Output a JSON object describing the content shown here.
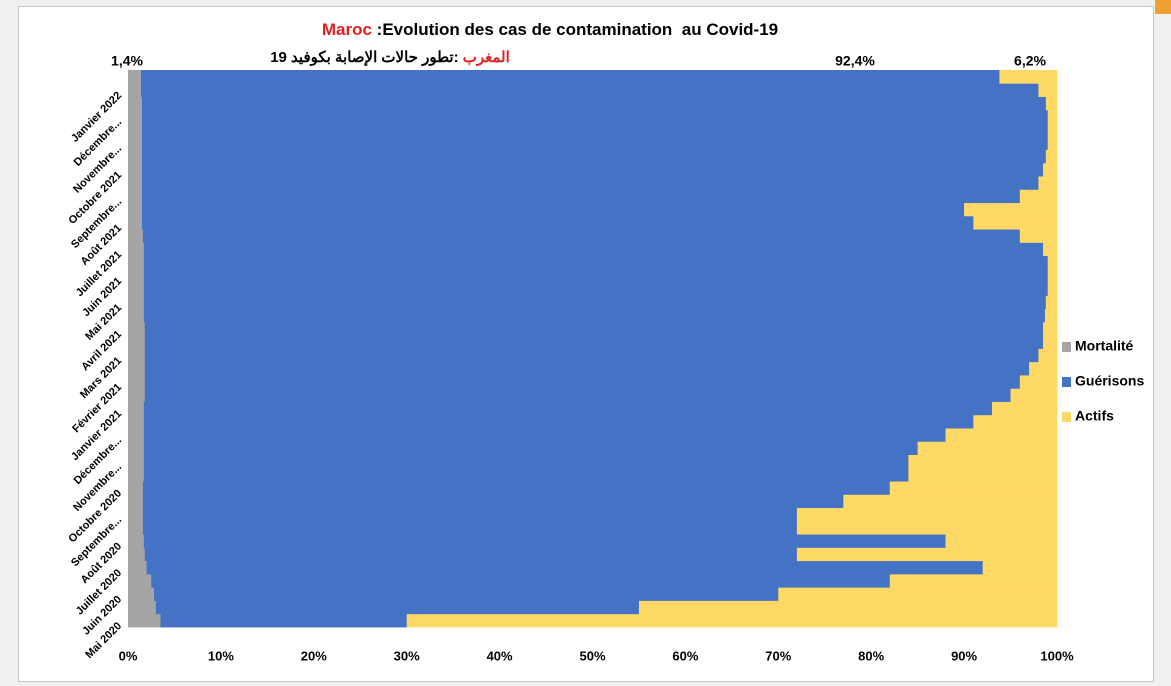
{
  "chart_data": {
    "type": "bar",
    "orientation": "horizontal",
    "stacked": true,
    "title": {
      "highlight": "Maroc",
      "text": " :Evolution des cas de contamination  au Covid-19"
    },
    "subtitle": {
      "highlight": "المغرب",
      "text": " :تطور حالات الإصابة بكوفيد 19"
    },
    "annotations": [
      "1,4%",
      "92,4%",
      "6,2%"
    ],
    "categories": [
      "Mai 2020",
      null,
      "Juin 2020",
      null,
      "Juillet 2020",
      null,
      "Août 2020",
      null,
      "Septembre...",
      null,
      "Octobre 2020",
      null,
      "Novembre...",
      null,
      "Décembre...",
      null,
      "Janvier 2021",
      null,
      "Février 2021",
      null,
      "Mars 2021",
      null,
      "Avril 2021",
      null,
      "Mai 2021",
      null,
      "Juin 2021",
      null,
      "Juillet 2021",
      null,
      "Août 2021",
      null,
      "Septembre...",
      null,
      "Octobre 2021",
      null,
      "Novembre...",
      null,
      "Décembre...",
      null,
      "Janvier 2022",
      null
    ],
    "series": [
      {
        "name": "Mortalité",
        "color": "#a5a5a5",
        "values": [
          3.5,
          3,
          2.8,
          2.5,
          2,
          1.8,
          1.7,
          1.6,
          1.6,
          1.6,
          1.6,
          1.7,
          1.7,
          1.7,
          1.7,
          1.7,
          1.7,
          1.8,
          1.8,
          1.8,
          1.8,
          1.8,
          1.8,
          1.7,
          1.7,
          1.7,
          1.7,
          1.7,
          1.7,
          1.6,
          1.5,
          1.5,
          1.5,
          1.5,
          1.5,
          1.5,
          1.5,
          1.5,
          1.5,
          1.5,
          1.4,
          1.4
        ]
      },
      {
        "name": "Guérisons",
        "color": "#4472c4",
        "values": [
          26.5,
          52,
          67.2,
          79.5,
          90,
          70.2,
          86.3,
          70.4,
          70.4,
          75.4,
          80.4,
          82.3,
          82.3,
          83.3,
          86.3,
          89.3,
          91.3,
          93.2,
          94.2,
          95.2,
          96.2,
          96.7,
          96.7,
          97.0,
          97.1,
          97.3,
          97.3,
          97.3,
          96.8,
          94.4,
          89.5,
          88.5,
          94.5,
          96.5,
          97.0,
          97.3,
          97.5,
          97.5,
          97.5,
          97.3,
          96.6,
          92.4
        ]
      },
      {
        "name": "Actifs",
        "color": "#ffd966",
        "values": [
          70,
          45,
          30,
          18,
          8,
          28,
          12,
          28,
          28,
          23,
          18,
          16,
          16,
          15,
          12,
          9,
          7,
          5,
          4,
          3,
          2,
          1.5,
          1.5,
          1.3,
          1.2,
          1.0,
          1.0,
          1.0,
          1.5,
          4,
          9,
          10,
          4,
          2,
          1.5,
          1.2,
          1.0,
          1.0,
          1.0,
          1.2,
          2,
          6.2
        ]
      }
    ],
    "xlim": [
      0,
      100
    ],
    "xticks": [
      {
        "value": 0,
        "label": "0%"
      },
      {
        "value": 10,
        "label": "10%"
      },
      {
        "value": 20,
        "label": "20%"
      },
      {
        "value": 30,
        "label": "30%"
      },
      {
        "value": 40,
        "label": "40%"
      },
      {
        "value": 50,
        "label": "50%"
      },
      {
        "value": 60,
        "label": "60%"
      },
      {
        "value": 70,
        "label": "70%"
      },
      {
        "value": 80,
        "label": "80%"
      },
      {
        "value": 90,
        "label": "90%"
      },
      {
        "value": 100,
        "label": "100%"
      }
    ],
    "grid": false,
    "legend": "right"
  }
}
